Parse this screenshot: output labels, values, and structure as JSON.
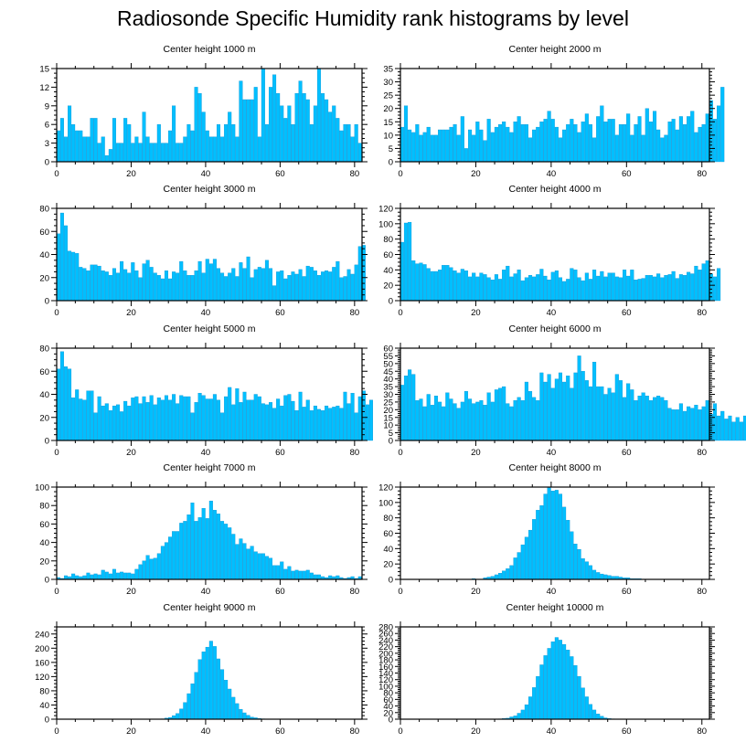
{
  "title": "Radiosonde Specific Humidity rank histograms by level",
  "colors": {
    "bar": "#00bfff",
    "bar_edge": "#0a8fd0",
    "axis": "#000000"
  },
  "chart_data": [
    {
      "type": "bar",
      "title": "Center height 1000 m",
      "xlabel": "",
      "ylabel": "",
      "xlim": [
        0,
        82
      ],
      "xticks": [
        0,
        20,
        40,
        60,
        80
      ],
      "ylim": [
        0,
        15
      ],
      "yticks": [
        0,
        3,
        6,
        9,
        12,
        15
      ],
      "values": [
        5,
        7,
        4,
        9,
        6,
        5,
        5,
        4,
        4,
        7,
        7,
        3,
        4,
        1,
        2,
        7,
        3,
        3,
        7,
        6,
        3,
        4,
        3,
        8,
        4,
        3,
        3,
        6,
        3,
        3,
        5,
        9,
        3,
        3,
        4,
        6,
        5,
        12,
        11,
        8,
        5,
        4,
        4,
        6,
        4,
        6,
        8,
        6,
        4,
        13,
        10,
        10,
        10,
        12,
        4,
        15,
        6,
        12,
        14,
        11,
        9,
        7,
        9,
        6,
        11,
        13,
        11,
        10,
        6,
        9,
        15,
        11,
        10,
        8,
        9,
        7,
        5,
        6,
        6,
        4,
        6,
        3
      ]
    },
    {
      "type": "bar",
      "title": "Center height 2000 m",
      "xlabel": "",
      "ylabel": "",
      "xlim": [
        0,
        82
      ],
      "xticks": [
        0,
        20,
        40,
        60,
        80
      ],
      "ylim": [
        0,
        35
      ],
      "yticks": [
        0,
        5,
        10,
        15,
        20,
        25,
        30,
        35
      ],
      "values": [
        13,
        21,
        12,
        11,
        14,
        10,
        11,
        13,
        10,
        10,
        12,
        12,
        12,
        13,
        14,
        10,
        17,
        5,
        12,
        10,
        15,
        12,
        8,
        16,
        11,
        13,
        14,
        15,
        13,
        11,
        15,
        17,
        14,
        14,
        9,
        12,
        13,
        15,
        16,
        19,
        16,
        13,
        9,
        12,
        14,
        16,
        14,
        11,
        15,
        18,
        14,
        9,
        17,
        21,
        15,
        16,
        16,
        10,
        14,
        14,
        18,
        10,
        14,
        17,
        10,
        20,
        15,
        19,
        12,
        9,
        10,
        15,
        16,
        12,
        17,
        14,
        17,
        19,
        11,
        13,
        14,
        18,
        23,
        16,
        21,
        28
      ]
    },
    {
      "type": "bar",
      "title": "Center height 3000 m",
      "xlabel": "",
      "ylabel": "",
      "xlim": [
        0,
        82
      ],
      "xticks": [
        0,
        20,
        40,
        60,
        80
      ],
      "ylim": [
        0,
        80
      ],
      "yticks": [
        0,
        20,
        40,
        60,
        80
      ],
      "values": [
        58,
        76,
        65,
        43,
        42,
        41,
        29,
        28,
        26,
        31,
        31,
        30,
        26,
        25,
        22,
        28,
        24,
        34,
        27,
        24,
        33,
        26,
        20,
        32,
        35,
        29,
        24,
        22,
        19,
        26,
        19,
        25,
        24,
        34,
        26,
        22,
        22,
        26,
        34,
        24,
        36,
        32,
        36,
        28,
        24,
        21,
        24,
        28,
        21,
        33,
        28,
        38,
        20,
        27,
        29,
        28,
        35,
        28,
        13,
        25,
        26,
        19,
        22,
        25,
        23,
        27,
        21,
        30,
        29,
        26,
        22,
        25,
        26,
        25,
        29,
        34,
        20,
        21,
        27,
        23,
        31,
        47,
        48
      ]
    },
    {
      "type": "bar",
      "title": "Center height 4000 m",
      "xlabel": "",
      "ylabel": "",
      "xlim": [
        0,
        82
      ],
      "xticks": [
        0,
        20,
        40,
        60,
        80
      ],
      "ylim": [
        0,
        120
      ],
      "yticks": [
        0,
        20,
        40,
        60,
        80,
        100,
        120
      ],
      "values": [
        76,
        101,
        102,
        52,
        48,
        49,
        47,
        42,
        38,
        38,
        40,
        46,
        46,
        43,
        39,
        36,
        41,
        39,
        31,
        36,
        31,
        36,
        34,
        30,
        27,
        34,
        28,
        40,
        45,
        31,
        35,
        40,
        26,
        30,
        33,
        31,
        34,
        41,
        32,
        27,
        37,
        39,
        30,
        25,
        28,
        42,
        40,
        30,
        26,
        36,
        28,
        40,
        32,
        38,
        31,
        36,
        36,
        31,
        30,
        40,
        32,
        40,
        27,
        28,
        29,
        33,
        33,
        31,
        35,
        30,
        33,
        34,
        38,
        29,
        34,
        33,
        37,
        35,
        45,
        40,
        48,
        52,
        35,
        31,
        42
      ]
    },
    {
      "type": "bar",
      "title": "Center height 5000 m",
      "xlabel": "",
      "ylabel": "",
      "xlim": [
        0,
        82
      ],
      "xticks": [
        0,
        20,
        40,
        60,
        80
      ],
      "ylim": [
        0,
        80
      ],
      "yticks": [
        0,
        20,
        40,
        60,
        80
      ],
      "values": [
        62,
        77,
        64,
        62,
        37,
        44,
        36,
        35,
        43,
        43,
        24,
        38,
        30,
        32,
        26,
        30,
        31,
        25,
        34,
        30,
        37,
        38,
        32,
        38,
        33,
        39,
        31,
        37,
        35,
        39,
        35,
        40,
        32,
        39,
        38,
        38,
        24,
        33,
        41,
        39,
        36,
        36,
        40,
        35,
        24,
        38,
        46,
        31,
        45,
        33,
        42,
        35,
        35,
        40,
        38,
        32,
        31,
        33,
        28,
        36,
        30,
        39,
        40,
        34,
        26,
        42,
        29,
        35,
        26,
        30,
        27,
        26,
        30,
        28,
        29,
        30,
        28,
        42,
        32,
        41,
        24,
        38,
        43,
        31,
        35
      ]
    },
    {
      "type": "bar",
      "title": "Center height 6000 m",
      "xlabel": "",
      "ylabel": "",
      "xlim": [
        0,
        82
      ],
      "xticks": [
        0,
        20,
        40,
        60,
        80
      ],
      "ylim": [
        0,
        60
      ],
      "yticks": [
        0,
        5,
        10,
        15,
        20,
        25,
        30,
        35,
        40,
        45,
        50,
        55,
        60
      ],
      "values": [
        36,
        42,
        46,
        43,
        26,
        27,
        22,
        30,
        23,
        29,
        25,
        22,
        31,
        27,
        24,
        21,
        25,
        32,
        27,
        24,
        25,
        26,
        23,
        31,
        25,
        33,
        34,
        35,
        24,
        22,
        26,
        28,
        26,
        38,
        32,
        28,
        26,
        44,
        38,
        43,
        34,
        40,
        44,
        38,
        42,
        34,
        44,
        55,
        45,
        39,
        35,
        51,
        35,
        35,
        30,
        34,
        31,
        43,
        39,
        28,
        37,
        33,
        26,
        29,
        31,
        29,
        26,
        28,
        29,
        28,
        26,
        21,
        20,
        20,
        24,
        19,
        22,
        21,
        23,
        20,
        22,
        26,
        17,
        24,
        16,
        19,
        14,
        16,
        12,
        15,
        12,
        16,
        12,
        14,
        13,
        16,
        10,
        13,
        20,
        7
      ]
    },
    {
      "type": "bar",
      "title": "Center height 7000 m",
      "xlabel": "",
      "ylabel": "",
      "xlim": [
        0,
        82
      ],
      "xticks": [
        0,
        20,
        40,
        60,
        80
      ],
      "ylim": [
        0,
        100
      ],
      "yticks": [
        0,
        20,
        40,
        60,
        80,
        100
      ],
      "values": [
        2,
        1,
        4,
        3,
        6,
        4,
        3,
        4,
        7,
        5,
        6,
        5,
        10,
        8,
        6,
        11,
        7,
        8,
        7,
        7,
        6,
        11,
        16,
        20,
        26,
        22,
        23,
        28,
        36,
        40,
        46,
        52,
        52,
        61,
        63,
        70,
        83,
        63,
        67,
        77,
        66,
        85,
        75,
        71,
        63,
        60,
        56,
        49,
        38,
        44,
        39,
        33,
        36,
        30,
        28,
        28,
        25,
        23,
        15,
        15,
        19,
        11,
        14,
        9,
        10,
        9,
        9,
        10,
        7,
        5,
        5,
        3,
        2,
        4,
        3,
        4,
        2,
        1,
        2,
        3,
        1,
        3
      ]
    },
    {
      "type": "bar",
      "title": "Center height 8000 m",
      "xlabel": "",
      "ylabel": "",
      "xlim": [
        0,
        82
      ],
      "xticks": [
        0,
        20,
        40,
        60,
        80
      ],
      "ylim": [
        0,
        120
      ],
      "yticks": [
        0,
        20,
        40,
        60,
        80,
        100,
        120
      ],
      "values": [
        0,
        0,
        0,
        0,
        0,
        0,
        0,
        0,
        0,
        0,
        0,
        0,
        0,
        0,
        0,
        0,
        0,
        0,
        0,
        1,
        0,
        0,
        2,
        3,
        4,
        6,
        8,
        11,
        14,
        18,
        28,
        35,
        45,
        55,
        64,
        78,
        90,
        96,
        111,
        119,
        115,
        116,
        111,
        94,
        77,
        62,
        46,
        39,
        27,
        23,
        18,
        12,
        9,
        7,
        6,
        5,
        4,
        4,
        3,
        2,
        2,
        1,
        1,
        1,
        0,
        0,
        0,
        0,
        0,
        0,
        0,
        0,
        0,
        0,
        0,
        0,
        0,
        0,
        0,
        0,
        0,
        0
      ]
    },
    {
      "type": "bar",
      "title": "Center height 9000 m",
      "xlabel": "",
      "ylabel": "",
      "xlim": [
        0,
        82
      ],
      "xticks": [
        0,
        20,
        40,
        60,
        80
      ],
      "ylim": [
        0,
        260
      ],
      "yticks": [
        0,
        40,
        80,
        120,
        160,
        200,
        240
      ],
      "values": [
        0,
        0,
        0,
        0,
        0,
        0,
        0,
        0,
        0,
        0,
        0,
        0,
        0,
        0,
        0,
        0,
        0,
        0,
        0,
        0,
        0,
        0,
        0,
        0,
        0,
        0,
        0,
        0,
        1,
        3,
        5,
        10,
        16,
        29,
        47,
        72,
        100,
        132,
        168,
        190,
        203,
        220,
        205,
        170,
        140,
        110,
        85,
        62,
        44,
        28,
        18,
        11,
        6,
        4,
        2,
        1,
        0,
        0,
        0,
        0,
        0,
        0,
        0,
        0,
        0,
        0,
        0,
        0,
        0,
        0,
        0,
        0,
        0,
        0,
        0,
        0,
        0,
        0,
        0,
        0,
        0,
        0
      ]
    },
    {
      "type": "bar",
      "title": "Center height 10000 m",
      "xlabel": "",
      "ylabel": "",
      "xlim": [
        0,
        82
      ],
      "xticks": [
        0,
        20,
        40,
        60,
        80
      ],
      "ylim": [
        0,
        280
      ],
      "yticks": [
        0,
        20,
        40,
        60,
        80,
        100,
        120,
        140,
        160,
        180,
        200,
        220,
        240,
        260,
        280
      ],
      "values": [
        0,
        0,
        0,
        0,
        0,
        0,
        0,
        0,
        0,
        0,
        0,
        0,
        0,
        0,
        0,
        0,
        0,
        0,
        0,
        0,
        0,
        0,
        0,
        0,
        0,
        0,
        1,
        2,
        3,
        7,
        10,
        18,
        28,
        44,
        68,
        96,
        130,
        165,
        193,
        215,
        235,
        248,
        240,
        227,
        210,
        190,
        163,
        130,
        95,
        68,
        45,
        28,
        16,
        9,
        4,
        2,
        1,
        0,
        0,
        0,
        0,
        0,
        0,
        0,
        0,
        0,
        0,
        0,
        0,
        0,
        0,
        0,
        0,
        0,
        0,
        0,
        0,
        0,
        0,
        0,
        0,
        0
      ]
    }
  ]
}
